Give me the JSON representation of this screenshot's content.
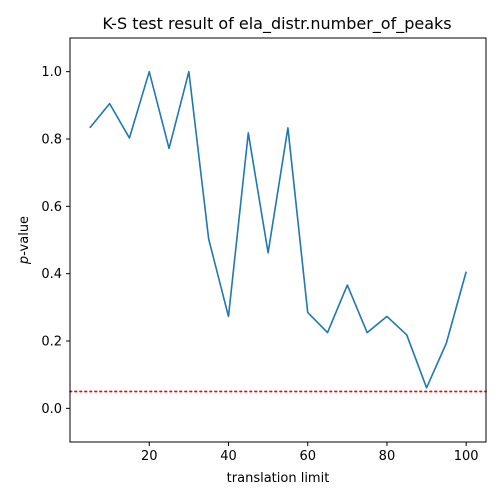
{
  "chart_data": {
    "type": "line",
    "title": "K-S test result of ela_distr.number_of_peaks",
    "xlabel": "translation limit",
    "ylabel_italic": "p",
    "ylabel_rest": "-value",
    "xlim": [
      0,
      105
    ],
    "ylim": [
      -0.1,
      1.1
    ],
    "xticks": [
      20,
      40,
      60,
      80,
      100
    ],
    "yticks": [
      0.0,
      0.2,
      0.4,
      0.6,
      0.8,
      1.0
    ],
    "ytick_labels": [
      "0.0",
      "0.2",
      "0.4",
      "0.6",
      "0.8",
      "1.0"
    ],
    "grid": false,
    "series": [
      {
        "color": "#1f77b4",
        "x": [
          5,
          10,
          15,
          20,
          25,
          30,
          35,
          40,
          45,
          50,
          55,
          60,
          65,
          70,
          75,
          80,
          85,
          90,
          95,
          100
        ],
        "y": [
          0.833,
          0.905,
          0.803,
          1.0,
          0.772,
          1.0,
          0.503,
          0.273,
          0.818,
          0.462,
          0.833,
          0.285,
          0.225,
          0.366,
          0.225,
          0.273,
          0.218,
          0.061,
          0.194,
          0.406
        ]
      }
    ],
    "reference_line": {
      "y": 0.05,
      "color": "#ff0000",
      "style": "dotted"
    }
  }
}
